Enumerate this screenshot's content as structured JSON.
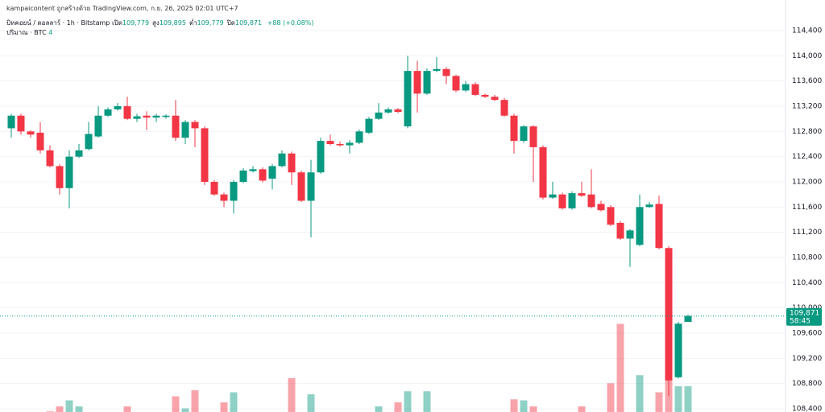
{
  "header": {
    "credit": "kampaicontent ถูกสร้างด้วย TradingView.com, ก.ย. 26, 2025 02:01 UTC+7",
    "symbol": "บิทคอยน์ / ดอลลาร์ · 1h · Bitstamp",
    "ohlc": [
      {
        "label": "เปิด",
        "value": "109,779"
      },
      {
        "label": "สูง",
        "value": "109,895"
      },
      {
        "label": "ต่ำ",
        "value": "109,779"
      },
      {
        "label": "ปิด",
        "value": "109,871"
      }
    ],
    "change": "+88 (+0.08%)",
    "volume_label": "ปริมาณ · BTC",
    "volume_value": "4"
  },
  "chart_data": {
    "type": "candlestick",
    "up_color": "#089981",
    "down_color": "#f23645",
    "ylim": [
      108349,
      114885
    ],
    "yticks": [
      {
        "value": 114400,
        "label": "114,400"
      },
      {
        "value": 114000,
        "label": "114,000"
      },
      {
        "value": 113600,
        "label": "113,600"
      },
      {
        "value": 113200,
        "label": "113,200"
      },
      {
        "value": 112800,
        "label": "112,800"
      },
      {
        "value": 112400,
        "label": "112,400"
      },
      {
        "value": 112000,
        "label": "112,000"
      },
      {
        "value": 111600,
        "label": "111,600"
      },
      {
        "value": 111200,
        "label": "111,200"
      },
      {
        "value": 110800,
        "label": "110,800"
      },
      {
        "value": 110400,
        "label": "110,400"
      },
      {
        "value": 110000,
        "label": "110,000"
      },
      {
        "value": 109600,
        "label": "109,600"
      },
      {
        "value": 109200,
        "label": "109,200"
      },
      {
        "value": 108800,
        "label": "108,800"
      },
      {
        "value": 108400,
        "label": "108,400"
      }
    ],
    "grid": true,
    "last_price_label": "109,871",
    "countdown": "58:45",
    "open": [
      112850,
      113050,
      112800,
      112780,
      112500,
      112250,
      111900,
      112400,
      112520,
      112720,
      113050,
      113150,
      113200,
      113000,
      113050,
      113020,
      113030,
      113050,
      112700,
      112950,
      112850,
      112000,
      111800,
      111700,
      112000,
      112170,
      112200,
      112050,
      112250,
      112450,
      112150,
      111700,
      112150,
      112650,
      112600,
      112580,
      112620,
      112780,
      113000,
      113100,
      113150,
      112880,
      113760,
      113400,
      113760,
      113790,
      113680,
      113450,
      113550,
      113380,
      113350,
      113300,
      113050,
      112650,
      112880,
      112550,
      111750,
      111800,
      111580,
      111820,
      111800,
      111650,
      111600,
      111350,
      111100,
      111000,
      111600,
      111650,
      110950,
      108900,
      109779
    ],
    "high": [
      113080,
      113080,
      112820,
      112950,
      112580,
      112280,
      112500,
      112600,
      112950,
      113200,
      113180,
      113250,
      113350,
      113080,
      113120,
      113080,
      113070,
      113300,
      112980,
      112980,
      112880,
      112030,
      111830,
      112030,
      112220,
      112250,
      112230,
      112280,
      112500,
      112480,
      112180,
      112350,
      112700,
      112750,
      112640,
      112660,
      112830,
      113030,
      113250,
      113180,
      113170,
      114000,
      113920,
      113800,
      113980,
      113820,
      113700,
      113600,
      113580,
      113400,
      113380,
      113330,
      113080,
      112900,
      112900,
      112580,
      112000,
      111830,
      111850,
      112000,
      112200,
      111700,
      111630,
      111380,
      111250,
      111800,
      111680,
      111780,
      110980,
      109780,
      109895
    ],
    "low": [
      112700,
      112750,
      112700,
      112450,
      112230,
      111800,
      111580,
      112380,
      112500,
      112700,
      113030,
      113130,
      112980,
      112950,
      112820,
      112950,
      113000,
      112650,
      112600,
      112550,
      111950,
      111780,
      111600,
      111500,
      111980,
      112150,
      111990,
      111880,
      112230,
      111950,
      111680,
      111120,
      112130,
      112580,
      112560,
      112450,
      112600,
      112760,
      112980,
      113080,
      113090,
      112850,
      113100,
      113380,
      113740,
      113550,
      113420,
      113430,
      113360,
      113330,
      113280,
      113030,
      112450,
      112620,
      112000,
      111720,
      111730,
      111560,
      111560,
      111760,
      111580,
      111530,
      111300,
      111080,
      110650,
      110980,
      111590,
      110930,
      108600,
      108880,
      109779
    ],
    "close": [
      113050,
      112800,
      112750,
      112500,
      112250,
      111900,
      112400,
      112500,
      112760,
      113050,
      113150,
      113200,
      113000,
      113040,
      113020,
      113050,
      113050,
      112700,
      112950,
      112850,
      112000,
      111800,
      111700,
      112000,
      112180,
      112200,
      112020,
      112250,
      112450,
      112150,
      111700,
      112150,
      112650,
      112600,
      112580,
      112620,
      112800,
      113000,
      113100,
      113150,
      113110,
      113760,
      113400,
      113760,
      113790,
      113680,
      113450,
      113550,
      113380,
      113350,
      113300,
      113050,
      112650,
      112880,
      112550,
      111750,
      111800,
      111580,
      111820,
      111780,
      111600,
      111550,
      111320,
      111100,
      111230,
      111600,
      111640,
      110950,
      108850,
      109750,
      109871
    ],
    "volume": [
      1,
      1,
      1,
      1,
      1.5,
      2,
      2.6,
      2,
      1,
      1,
      1,
      1,
      2,
      1,
      1,
      1,
      1.2,
      3,
      1.8,
      3.6,
      1,
      1,
      2.4,
      3.4,
      1,
      1,
      1,
      1,
      1,
      4.8,
      1,
      3.2,
      1,
      1,
      1,
      1,
      1,
      1,
      2,
      1,
      2.4,
      3.5,
      1.4,
      3.5,
      1,
      1,
      1,
      1,
      1,
      1,
      1,
      1,
      2.7,
      2.6,
      2,
      1,
      1,
      1,
      1,
      2,
      1,
      1,
      4.3,
      10.2,
      1,
      5.1,
      1,
      3.4,
      8.8,
      4,
      4
    ]
  }
}
